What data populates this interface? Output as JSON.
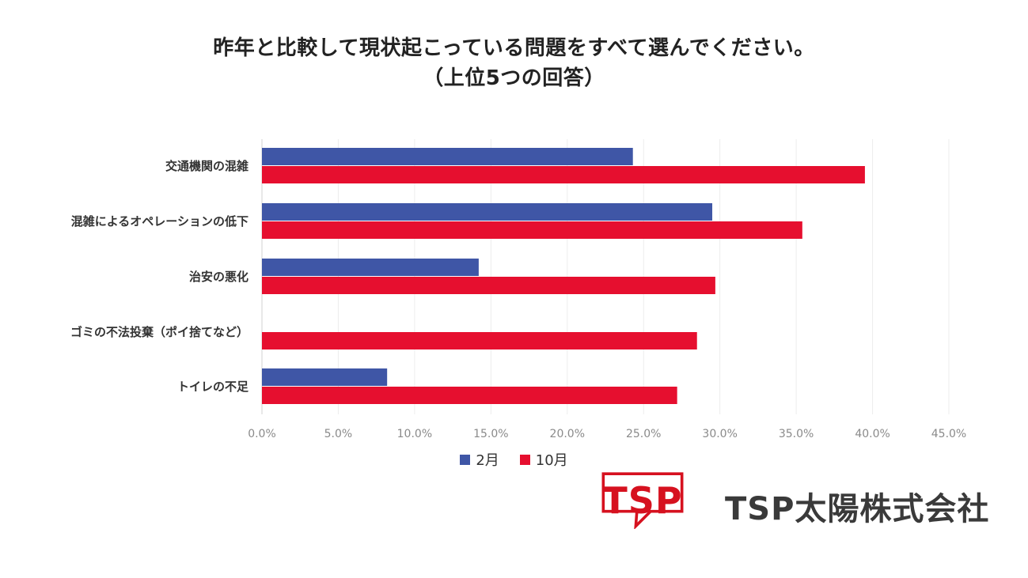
{
  "title_line1": "昨年と比較して現状起こっている問題をすべて選んでください。",
  "title_line2": "（上位5つの回答）",
  "chart_data": {
    "type": "bar",
    "orientation": "horizontal",
    "categories": [
      "交通機関の混雑",
      "混雑によるオペレーションの低下",
      "治安の悪化",
      "ゴミの不法投棄（ポイ捨てなど）",
      "トイレの不足"
    ],
    "series": [
      {
        "name": "2月",
        "color": "#3f56a6",
        "values": [
          24.3,
          29.5,
          14.2,
          0,
          8.2
        ]
      },
      {
        "name": "10月",
        "color": "#e60f2f",
        "values": [
          39.5,
          35.4,
          29.7,
          28.5,
          27.2
        ]
      }
    ],
    "xlim": [
      0,
      45
    ],
    "xticks": [
      "0.0%",
      "5.0%",
      "10.0%",
      "15.0%",
      "20.0%",
      "25.0%",
      "30.0%",
      "35.0%",
      "40.0%",
      "45.0%"
    ],
    "grid": true,
    "legend_position": "bottom-center"
  },
  "legend": {
    "feb_label": "2月",
    "oct_label": "10月",
    "feb_color": "#3f56a6",
    "oct_color": "#e60f2f"
  },
  "logo": {
    "mark_text": "TSP",
    "company_name": "TSP太陽株式会社",
    "color": "#d6111f"
  }
}
